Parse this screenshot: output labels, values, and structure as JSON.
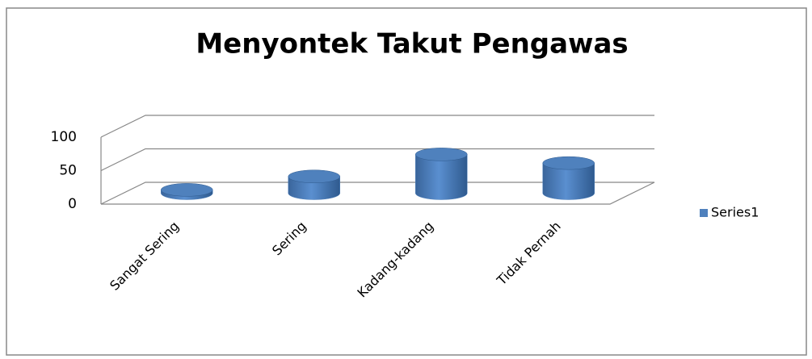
{
  "chart_data": {
    "type": "bar",
    "title": "Menyontek Takut Pengawas",
    "categories": [
      "Sangat Sering",
      "Sering",
      "Kadang-kadang",
      "Tidak Pernah"
    ],
    "series": [
      {
        "name": "Series1",
        "color": "#4f81bd",
        "values": [
          5,
          25,
          58,
          45
        ]
      }
    ],
    "ylim": [
      0,
      100
    ],
    "yticks": [
      0,
      50,
      100
    ],
    "grid": true,
    "legend": "right"
  }
}
